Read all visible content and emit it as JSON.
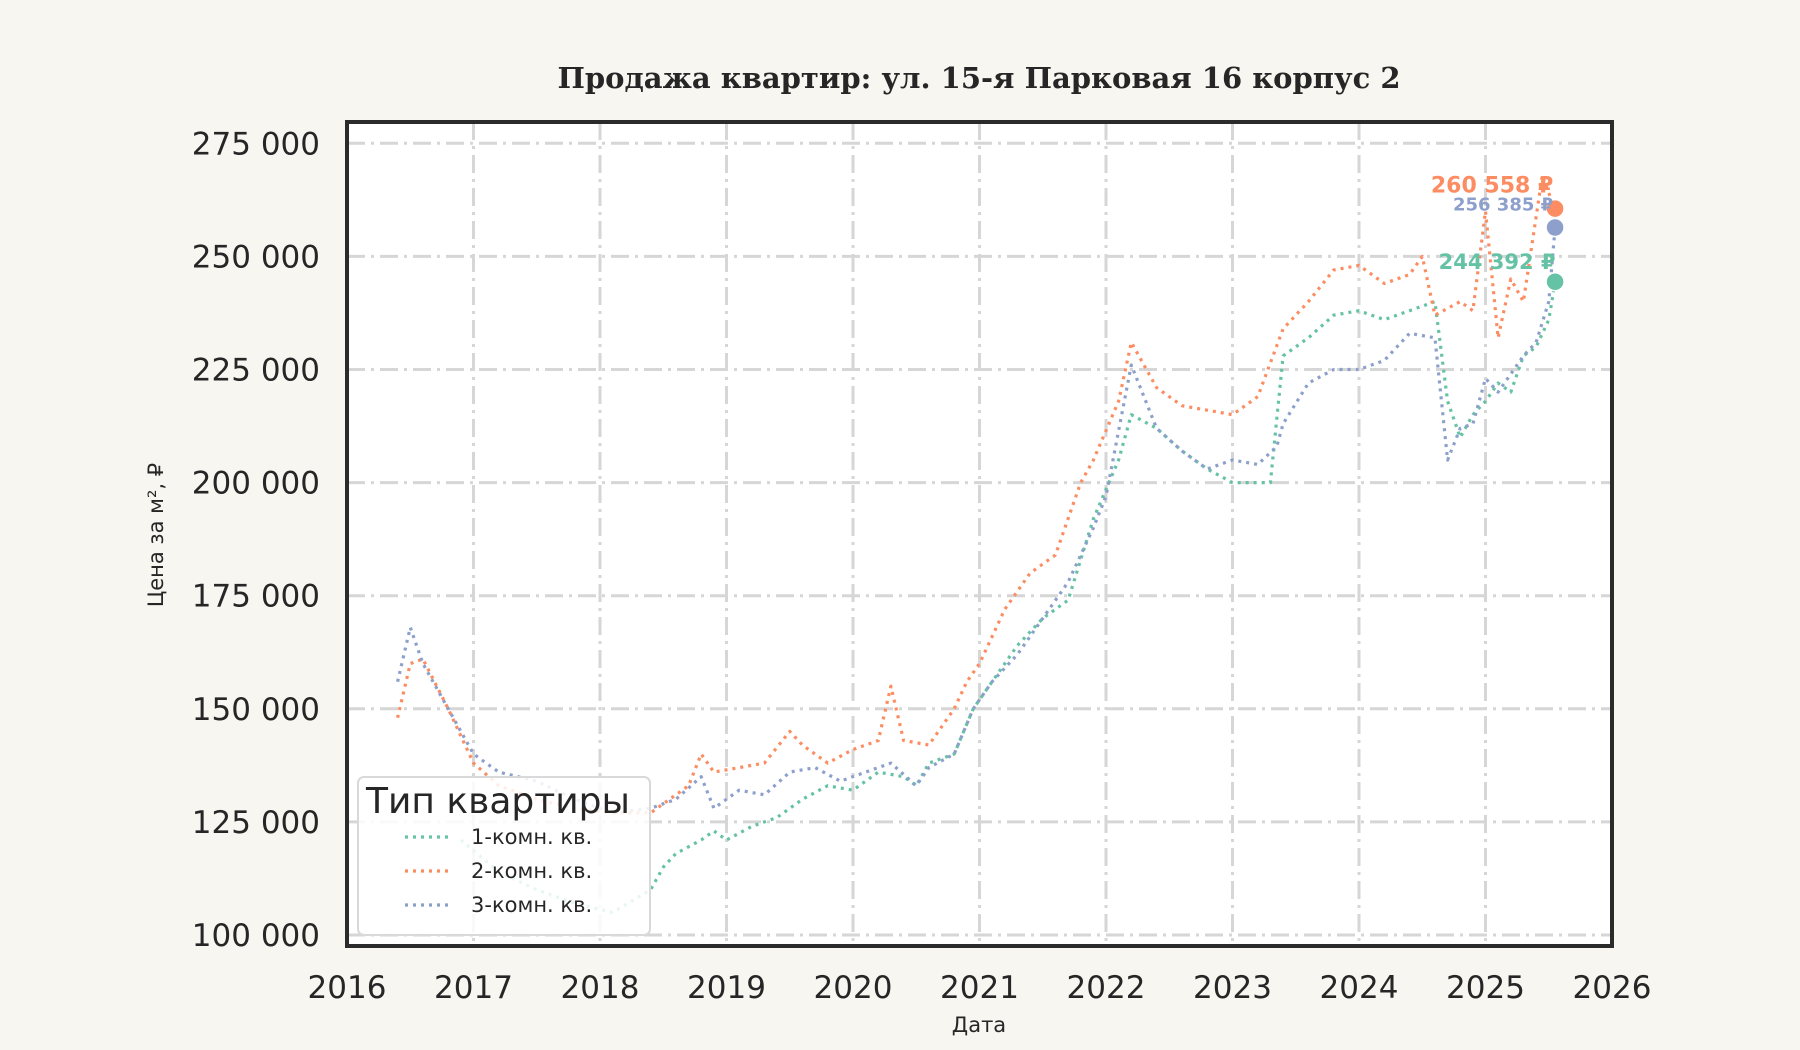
{
  "chart_data": {
    "type": "line",
    "title": "Продажа квартир: ул. 15-я Парковая 16 корпус 2",
    "xlabel": "Дата",
    "ylabel": "Цена за м², ₽",
    "xlim": [
      2016,
      2026
    ],
    "ylim": [
      100000,
      277000
    ],
    "x_ticks": [
      "2016",
      "2017",
      "2018",
      "2019",
      "2020",
      "2021",
      "2022",
      "2023",
      "2024",
      "2025",
      "2026"
    ],
    "y_ticks": [
      100000,
      125000,
      150000,
      175000,
      200000,
      225000,
      250000,
      275000
    ],
    "y_tick_labels": [
      "100 000",
      "125 000",
      "150 000",
      "175 000",
      "200 000",
      "225 000",
      "250 000",
      "275 000"
    ],
    "grid": true,
    "legend": {
      "title": "Тип квартиры",
      "position": "lower left"
    },
    "series": [
      {
        "name": "1-комн. кв.",
        "color": "#66c2a5",
        "x": [
          2016.9,
          2017.2,
          2017.5,
          2017.8,
          2018.1,
          2018.4,
          2018.5,
          2018.6,
          2018.8,
          2018.9,
          2019.0,
          2019.2,
          2019.4,
          2019.6,
          2019.8,
          2020.0,
          2020.2,
          2020.4,
          2020.5,
          2020.6,
          2020.8,
          2020.95,
          2021.1,
          2021.3,
          2021.5,
          2021.7,
          2021.9,
          2022.1,
          2022.2,
          2022.4,
          2022.6,
          2022.8,
          2023.0,
          2023.2,
          2023.3,
          2023.4,
          2023.6,
          2023.8,
          2024.0,
          2024.2,
          2024.4,
          2024.6,
          2024.7,
          2024.8,
          2024.9,
          2025.0,
          2025.1,
          2025.2,
          2025.3,
          2025.4,
          2025.5,
          2025.55
        ],
        "values": [
          121000,
          114000,
          110000,
          107000,
          105000,
          110000,
          115000,
          118000,
          121000,
          123000,
          121000,
          124000,
          126000,
          130000,
          133000,
          132000,
          136000,
          135000,
          133000,
          138000,
          140000,
          150000,
          156000,
          164000,
          170000,
          174000,
          192000,
          205000,
          215000,
          212000,
          207000,
          203000,
          200000,
          200000,
          200000,
          228000,
          232000,
          237000,
          238000,
          236000,
          238000,
          240000,
          218000,
          210000,
          215000,
          218000,
          222000,
          220000,
          228000,
          230000,
          236000,
          244392
        ]
      },
      {
        "name": "2-комн. кв.",
        "color": "#fc8d62",
        "x": [
          2016.4,
          2016.5,
          2016.6,
          2016.8,
          2017.0,
          2017.2,
          2017.5,
          2017.8,
          2018.1,
          2018.4,
          2018.7,
          2018.8,
          2018.9,
          2019.1,
          2019.3,
          2019.5,
          2019.6,
          2019.8,
          2020.0,
          2020.2,
          2020.3,
          2020.4,
          2020.6,
          2020.8,
          2020.9,
          2021.0,
          2021.2,
          2021.4,
          2021.6,
          2021.8,
          2021.9,
          2022.1,
          2022.2,
          2022.4,
          2022.6,
          2022.8,
          2023.0,
          2023.2,
          2023.4,
          2023.6,
          2023.8,
          2024.0,
          2024.2,
          2024.4,
          2024.5,
          2024.6,
          2024.8,
          2024.9,
          2025.0,
          2025.1,
          2025.2,
          2025.3,
          2025.45,
          2025.5,
          2025.55
        ],
        "values": [
          148000,
          160000,
          161000,
          150000,
          138000,
          133000,
          130000,
          128000,
          127000,
          127000,
          133000,
          140000,
          136000,
          137000,
          138000,
          145000,
          142000,
          138000,
          141000,
          143000,
          155000,
          143000,
          142000,
          150000,
          156000,
          160000,
          172000,
          180000,
          184000,
          200000,
          205000,
          218000,
          231000,
          221000,
          217000,
          216000,
          215000,
          219000,
          234000,
          240000,
          247000,
          248000,
          244000,
          246000,
          250000,
          237000,
          240000,
          238000,
          260000,
          232000,
          245000,
          240000,
          268000,
          264000,
          260558
        ]
      },
      {
        "name": "3-комн. кв.",
        "color": "#8da0cb",
        "x": [
          2016.4,
          2016.5,
          2016.6,
          2016.8,
          2017.0,
          2017.2,
          2017.5,
          2017.8,
          2018.1,
          2018.4,
          2018.6,
          2018.8,
          2018.9,
          2019.1,
          2019.3,
          2019.5,
          2019.7,
          2019.9,
          2020.1,
          2020.3,
          2020.5,
          2020.6,
          2020.8,
          2020.95,
          2021.1,
          2021.3,
          2021.5,
          2021.7,
          2021.9,
          2022.0,
          2022.2,
          2022.4,
          2022.6,
          2022.8,
          2023.0,
          2023.2,
          2023.35,
          2023.4,
          2023.6,
          2023.8,
          2024.0,
          2024.2,
          2024.4,
          2024.6,
          2024.7,
          2024.8,
          2024.9,
          2025.0,
          2025.1,
          2025.2,
          2025.3,
          2025.4,
          2025.5,
          2025.55
        ],
        "values": [
          156000,
          168000,
          160000,
          150000,
          140000,
          136000,
          134000,
          130000,
          127000,
          128000,
          130000,
          135000,
          128000,
          132000,
          131000,
          136000,
          137000,
          134000,
          136000,
          138000,
          133000,
          137000,
          140000,
          150000,
          156000,
          162000,
          170000,
          178000,
          190000,
          197000,
          226000,
          212000,
          207000,
          203000,
          205000,
          204000,
          208000,
          213000,
          222000,
          225000,
          225000,
          227000,
          233000,
          232000,
          205000,
          212000,
          213000,
          223000,
          220000,
          224000,
          228000,
          231000,
          240000,
          256385
        ]
      }
    ],
    "end_labels": [
      {
        "series": "2-комн. кв.",
        "text": "260 558 ₽",
        "x": 2025.55,
        "value": 260558,
        "color": "#fc8d62"
      },
      {
        "series": "3-комн. кв.",
        "text": "256 385 ₽",
        "x": 2025.55,
        "value": 256385,
        "color": "#8da0cb"
      },
      {
        "series": "1-комн. кв.",
        "text": "244 392 ₽",
        "x": 2025.55,
        "value": 244392,
        "color": "#66c2a5"
      }
    ]
  }
}
